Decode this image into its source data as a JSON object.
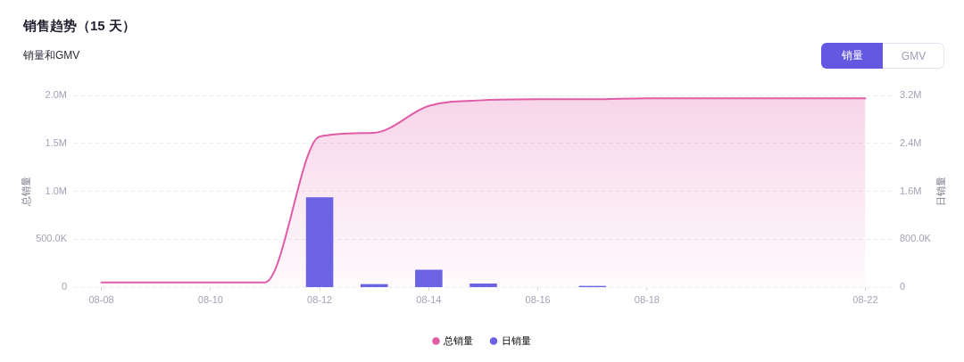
{
  "chart_data": {
    "type": "bar",
    "title": "销售趋势（15 天）",
    "subtitle": "销量和GMV",
    "ylabel": "总销量",
    "y2label": "日销量",
    "annotations": [
      "销量",
      "GMV"
    ],
    "categories": [
      "08-08",
      null,
      "08-10",
      null,
      "08-12",
      null,
      "08-14",
      null,
      "08-16",
      null,
      "08-18",
      null,
      null,
      null,
      "08-22"
    ],
    "series": [
      {
        "name": "总销量",
        "type": "area",
        "color": "#e05ca7",
        "values": [
          50000,
          50000,
          50000,
          50000,
          1570000,
          1610000,
          1890000,
          1950000,
          1960000,
          1960000,
          1970000,
          1970000,
          1970000,
          1970000,
          1970000
        ]
      },
      {
        "name": "日销量",
        "type": "bar",
        "axis": "y2",
        "color": "#6b63e4",
        "values": [
          0,
          0,
          0,
          0,
          1500000,
          50000,
          290000,
          60000,
          0,
          20000,
          0,
          0,
          0,
          0,
          0
        ]
      }
    ],
    "ylim": [
      0,
      2000000
    ],
    "yticks": [
      0,
      {
        "value": 500000,
        "label": "500.0K"
      },
      {
        "value": 1000000,
        "label": "1.0M"
      },
      {
        "value": 1500000,
        "label": "1.5M"
      },
      {
        "value": 2000000,
        "label": "2.0M"
      }
    ],
    "y2lim": [
      0,
      3200000
    ],
    "y2ticks": [
      0,
      {
        "value": 800000,
        "label": "800.0K"
      },
      {
        "value": 1600000,
        "label": "1.6M"
      },
      {
        "value": 2400000,
        "label": "2.4M"
      },
      {
        "value": 3200000,
        "label": "3.2M"
      }
    ],
    "grid": "y",
    "legend": "bottom",
    "marker": "none"
  }
}
